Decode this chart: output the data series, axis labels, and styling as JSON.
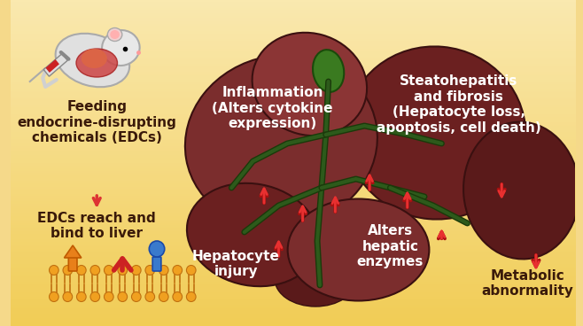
{
  "background_color": "#f5d98a",
  "background_color2": "#faeab0",
  "liver_color": "#7b2d2d",
  "liver_highlight": "#8b3535",
  "liver_dark": "#6b2020",
  "liver_shadow": "#5a1a1a",
  "vein_color": "#2d5a1b",
  "text_color_white": "#ffffff",
  "text_color_dark": "#3a1a0a",
  "arrow_color": "#e83030",
  "arrow_outline": "#aa1010",
  "labels": {
    "feeding": "Feeding\nendocrine-disrupting\nchemicals (EDCs)",
    "edc_reach": "EDCs reach and\nbind to liver",
    "inflammation": "Inflammation\n(Alters cytokine\nexpression)",
    "steatohepatitis": "Steatohepatitis\nand fibrosis\n(Hepatocyte loss,\napoptosis, cell death)",
    "hepatocyte": "Hepatocyte\ninjury",
    "alters_hepatic": "Alters\nhepatic\nenzymes",
    "metabolic": "Metabolic\nabnormality"
  },
  "font_sizes": {
    "main_label": 11,
    "side_label": 10,
    "small_label": 9
  }
}
